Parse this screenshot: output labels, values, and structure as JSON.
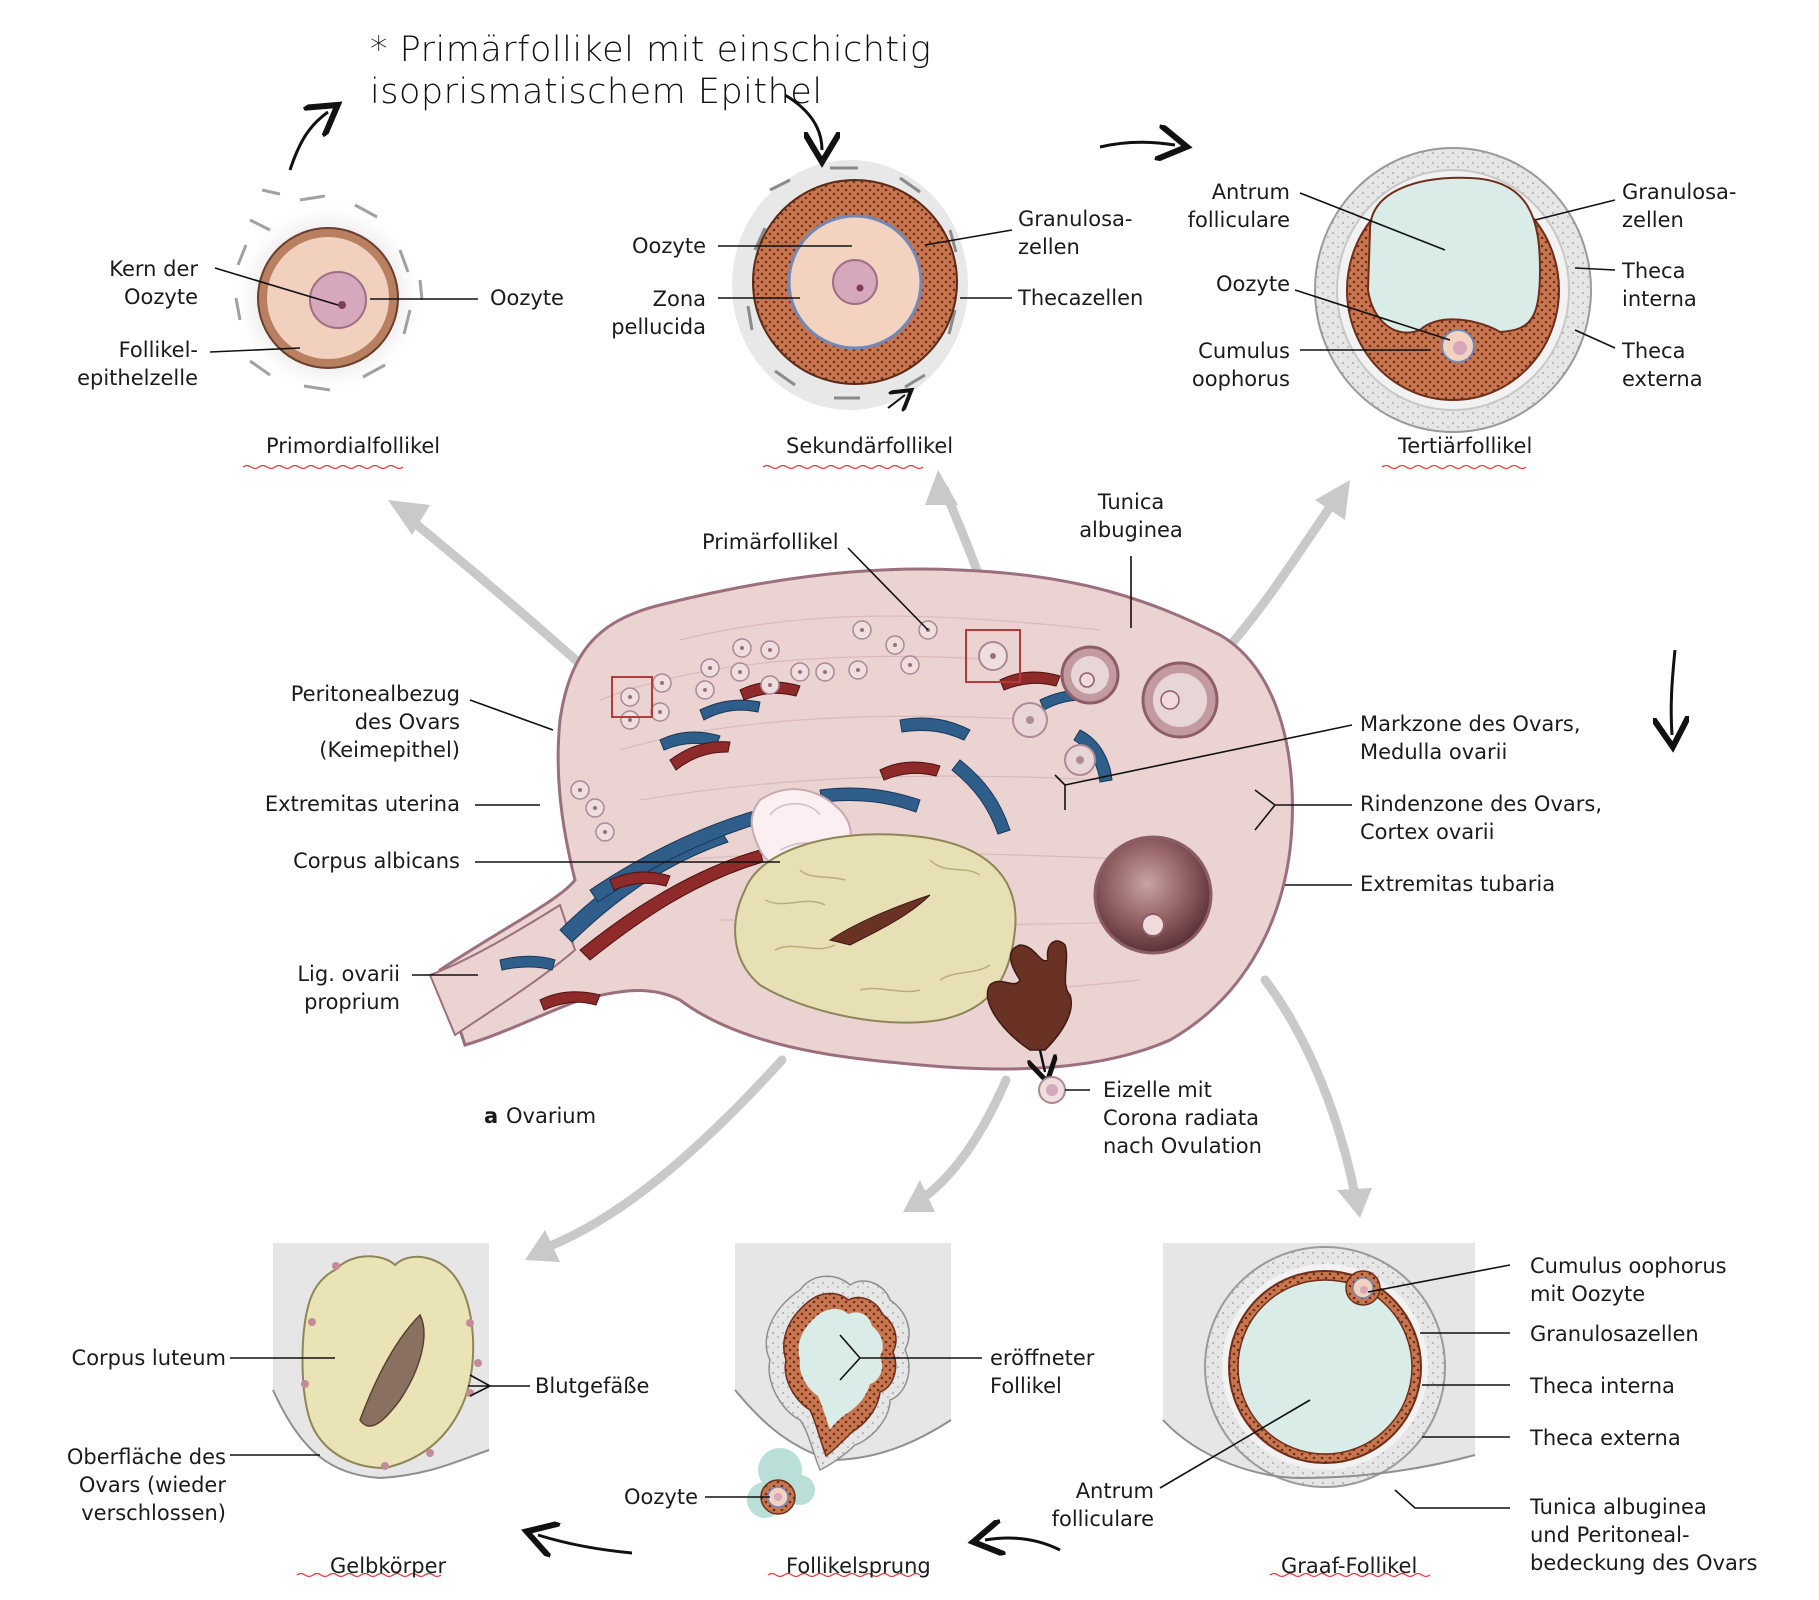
{
  "annotation": {
    "line1": "* Primärfollikel mit einschichtig",
    "line2": "isoprismatischem Epithel"
  },
  "primordial": {
    "title": "Primordialfollikel",
    "kern": "Kern der\nOozyte",
    "oozyte": "Oozyte",
    "epithel": "Follikel-\nepithelzelle"
  },
  "sekundaer": {
    "title": "Sekundärfollikel",
    "oozyte": "Oozyte",
    "zona": "Zona\npellucida",
    "granulosa": "Granulosa-\nzellen",
    "theca": "Thecazellen"
  },
  "tertiaer": {
    "title": "Tertiärfollikel",
    "antrum": "Antrum\nfolliculare",
    "oozyte": "Oozyte",
    "cumulus": "Cumulus\noophorus",
    "granulosa": "Granulosa-\nzellen",
    "theca_interna": "Theca\ninterna",
    "theca_externa": "Theca\nexterna"
  },
  "ovar": {
    "primaerfollikel": "Primärfollikel",
    "tunica": "Tunica\nalbuginea",
    "peritoneal": "Peritonealbezug\ndes Ovars\n(Keimepithel)",
    "extremitas_uterina": "Extremitas uterina",
    "corpus_albicans": "Corpus albicans",
    "lig": "Lig. ovarii\nproprium",
    "markzone": "Markzone des Ovars,\nMedulla ovarii",
    "rindenzone": "Rindenzone des Ovars,\nCortex ovarii",
    "extremitas_tubaria": "Extremitas tubaria",
    "eizelle": "Eizelle mit\nCorona radiata\nnach Ovulation",
    "caption_letter": "a",
    "caption": "Ovarium"
  },
  "gelbkoerper": {
    "title": "Gelbkörper",
    "corpus_luteum": "Corpus luteum",
    "blutgefaesse": "Blutgefäße",
    "oberflaeche": "Oberfläche des\nOvars (wieder\nverschlossen)"
  },
  "follikelsprung": {
    "title": "Follikelsprung",
    "eroeffneter": "eröffneter\nFollikel",
    "oozyte": "Oozyte"
  },
  "graaf": {
    "title": "Graaf-Follikel",
    "cumulus": "Cumulus oophorus\nmit Oozyte",
    "granulosa": "Granulosazellen",
    "theca_interna": "Theca interna",
    "theca_externa": "Theca externa",
    "tunica": "Tunica albuginea\nund Peritoneal-\nbedeckung des Ovars",
    "antrum": "Antrum\nfolliculare"
  },
  "colors": {
    "tissue": "#ecd4d3",
    "tissue_edge": "#9c6f7d",
    "granulosa": "#c6734f",
    "antrum": "#d9ece8",
    "oocyte": "#f3d3c0",
    "nucleus": "#d9a9bd",
    "corpus_luteum": "#e9e1b4",
    "vein": "#2f5e8a",
    "artery": "#8e2a2a",
    "arrow": "#c9c9c9",
    "underline": "#e23a3a"
  }
}
